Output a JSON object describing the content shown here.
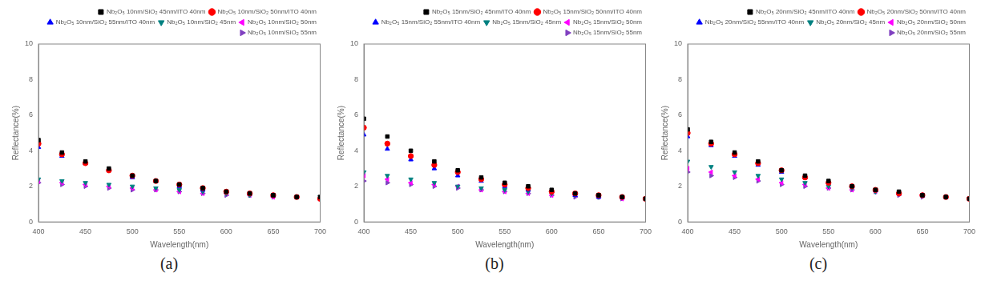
{
  "chart_data": [
    {
      "type": "scatter",
      "caption": "(a)",
      "x_label": "Wavelength(nm)",
      "y_label": "Reflectance(%)",
      "x": [
        400,
        425,
        450,
        475,
        500,
        525,
        550,
        575,
        600,
        625,
        650,
        675,
        700
      ],
      "xlim": [
        400,
        700
      ],
      "xticks": [
        400,
        450,
        500,
        550,
        600,
        650,
        700
      ],
      "ylim": [
        0,
        10
      ],
      "yticks": [
        0,
        2,
        4,
        6,
        8,
        10
      ],
      "grid": false,
      "legend": "top",
      "series": [
        {
          "name": "Nb₂O₅ 10nm/SiO₂ 45nm/ITO 40nm",
          "color": "#000000",
          "marker": "square",
          "values": [
            4.6,
            3.9,
            3.4,
            3.0,
            2.6,
            2.3,
            2.1,
            1.9,
            1.7,
            1.6,
            1.5,
            1.4,
            1.4
          ]
        },
        {
          "name": "Nb₂O₅ 10nm/SiO₂ 50nm/ITO 40nm",
          "color": "#ff0000",
          "marker": "circle",
          "values": [
            4.4,
            3.8,
            3.3,
            2.9,
            2.6,
            2.3,
            2.1,
            1.9,
            1.7,
            1.6,
            1.5,
            1.4,
            1.3
          ]
        },
        {
          "name": "Nb₂O₅ 10nm/SiO₂ 55nm/ITO 40nm",
          "color": "#0000ff",
          "marker": "triangle_up",
          "values": [
            4.2,
            3.7,
            3.3,
            2.9,
            2.5,
            2.3,
            2.0,
            1.8,
            1.7,
            1.6,
            1.5,
            1.4,
            1.3
          ]
        },
        {
          "name": "Nb₂O₅ 10nm/SiO₂ 45nm",
          "color": "#008080",
          "marker": "triangle_down",
          "values": [
            2.4,
            2.3,
            2.2,
            2.1,
            2.0,
            1.9,
            1.8,
            1.7,
            1.6,
            1.5,
            1.5,
            1.4,
            1.4
          ]
        },
        {
          "name": "Nb₂O₅ 10nm/SiO₂ 50nm",
          "color": "#ff00ff",
          "marker": "triangle_left",
          "values": [
            2.3,
            2.2,
            2.1,
            2.0,
            1.9,
            1.8,
            1.7,
            1.6,
            1.6,
            1.5,
            1.4,
            1.4,
            1.3
          ]
        },
        {
          "name": "Nb₂O₅ 10nm/SiO₂ 55nm",
          "color": "#8040c0",
          "marker": "triangle_right",
          "values": [
            2.2,
            2.1,
            2.0,
            1.9,
            1.8,
            1.8,
            1.7,
            1.6,
            1.5,
            1.5,
            1.4,
            1.4,
            1.3
          ]
        }
      ]
    },
    {
      "type": "scatter",
      "caption": "(b)",
      "x_label": "Wavelength(nm)",
      "y_label": "Reflectance(%)",
      "x": [
        400,
        425,
        450,
        475,
        500,
        525,
        550,
        575,
        600,
        625,
        650,
        675,
        700
      ],
      "xlim": [
        400,
        700
      ],
      "xticks": [
        400,
        450,
        500,
        550,
        600,
        650,
        700
      ],
      "ylim": [
        0,
        10
      ],
      "yticks": [
        0,
        2,
        4,
        6,
        8,
        10
      ],
      "grid": false,
      "legend": "top",
      "series": [
        {
          "name": "Nb₂O₅ 15nm/SiO₂ 45nm/ITO 40nm",
          "color": "#000000",
          "marker": "square",
          "values": [
            5.8,
            4.8,
            4.0,
            3.4,
            2.9,
            2.5,
            2.2,
            2.0,
            1.8,
            1.6,
            1.5,
            1.4,
            1.3
          ]
        },
        {
          "name": "Nb₂O₅ 15nm/SiO₂ 50nm/ITO 40nm",
          "color": "#ff0000",
          "marker": "circle",
          "values": [
            5.3,
            4.4,
            3.7,
            3.2,
            2.8,
            2.4,
            2.1,
            1.9,
            1.7,
            1.6,
            1.5,
            1.4,
            1.3
          ]
        },
        {
          "name": "Nb₂O₅ 15nm/SiO₂ 55nm/ITO 40nm",
          "color": "#0000ff",
          "marker": "triangle_up",
          "values": [
            4.9,
            4.1,
            3.5,
            3.0,
            2.6,
            2.3,
            2.0,
            1.8,
            1.7,
            1.5,
            1.4,
            1.4,
            1.3
          ]
        },
        {
          "name": "Nb₂O₅ 15nm/SiO₂ 45nm",
          "color": "#008080",
          "marker": "triangle_down",
          "values": [
            2.8,
            2.6,
            2.4,
            2.2,
            2.0,
            1.9,
            1.8,
            1.7,
            1.6,
            1.5,
            1.4,
            1.4,
            1.3
          ]
        },
        {
          "name": "Nb₂O₅ 15nm/SiO₂ 50nm",
          "color": "#ff00ff",
          "marker": "triangle_left",
          "values": [
            2.6,
            2.4,
            2.2,
            2.1,
            2.0,
            1.8,
            1.7,
            1.6,
            1.5,
            1.5,
            1.4,
            1.3,
            1.3
          ]
        },
        {
          "name": "Nb₂O₅ 15nm/SiO₂ 55nm",
          "color": "#8040c0",
          "marker": "triangle_right",
          "values": [
            2.3,
            2.2,
            2.1,
            2.0,
            1.9,
            1.8,
            1.7,
            1.6,
            1.5,
            1.4,
            1.4,
            1.3,
            1.3
          ]
        }
      ]
    },
    {
      "type": "scatter",
      "caption": "(c)",
      "x_label": "Wavelength(nm)",
      "y_label": "Reflectance(%)",
      "x": [
        400,
        425,
        450,
        475,
        500,
        525,
        550,
        575,
        600,
        625,
        650,
        675,
        700
      ],
      "xlim": [
        400,
        700
      ],
      "xticks": [
        400,
        450,
        500,
        550,
        600,
        650,
        700
      ],
      "ylim": [
        0,
        10
      ],
      "yticks": [
        0,
        2,
        4,
        6,
        8,
        10
      ],
      "grid": false,
      "legend": "top",
      "series": [
        {
          "name": "Nb₂O₅ 20nm/SiO₂ 45nm/ITO 40nm",
          "color": "#000000",
          "marker": "square",
          "values": [
            5.2,
            4.5,
            3.9,
            3.4,
            2.9,
            2.6,
            2.3,
            2.0,
            1.8,
            1.7,
            1.5,
            1.4,
            1.3
          ]
        },
        {
          "name": "Nb₂O₅ 20nm/SiO₂ 50nm/ITO 40nm",
          "color": "#ff0000",
          "marker": "circle",
          "values": [
            5.0,
            4.4,
            3.8,
            3.3,
            2.9,
            2.5,
            2.2,
            2.0,
            1.8,
            1.6,
            1.5,
            1.4,
            1.3
          ]
        },
        {
          "name": "Nb₂O₅ 20nm/SiO₂ 55nm/ITO 40nm",
          "color": "#0000ff",
          "marker": "triangle_up",
          "values": [
            4.8,
            4.3,
            3.7,
            3.2,
            2.8,
            2.5,
            2.2,
            2.0,
            1.8,
            1.6,
            1.5,
            1.4,
            1.3
          ]
        },
        {
          "name": "Nb₂O₅ 20nm/SiO₂ 45nm",
          "color": "#008080",
          "marker": "triangle_down",
          "values": [
            3.4,
            3.1,
            2.8,
            2.6,
            2.4,
            2.2,
            2.0,
            1.9,
            1.7,
            1.6,
            1.5,
            1.4,
            1.3
          ]
        },
        {
          "name": "Nb₂O₅ 20nm/SiO₂ 50nm",
          "color": "#ff00ff",
          "marker": "triangle_left",
          "values": [
            3.0,
            2.8,
            2.6,
            2.4,
            2.2,
            2.1,
            1.9,
            1.8,
            1.7,
            1.6,
            1.5,
            1.4,
            1.3
          ]
        },
        {
          "name": "Nb₂O₅ 20nm/SiO₂ 55nm",
          "color": "#8040c0",
          "marker": "triangle_right",
          "values": [
            2.8,
            2.6,
            2.5,
            2.3,
            2.1,
            2.0,
            1.9,
            1.8,
            1.7,
            1.5,
            1.4,
            1.4,
            1.3
          ]
        }
      ]
    }
  ]
}
